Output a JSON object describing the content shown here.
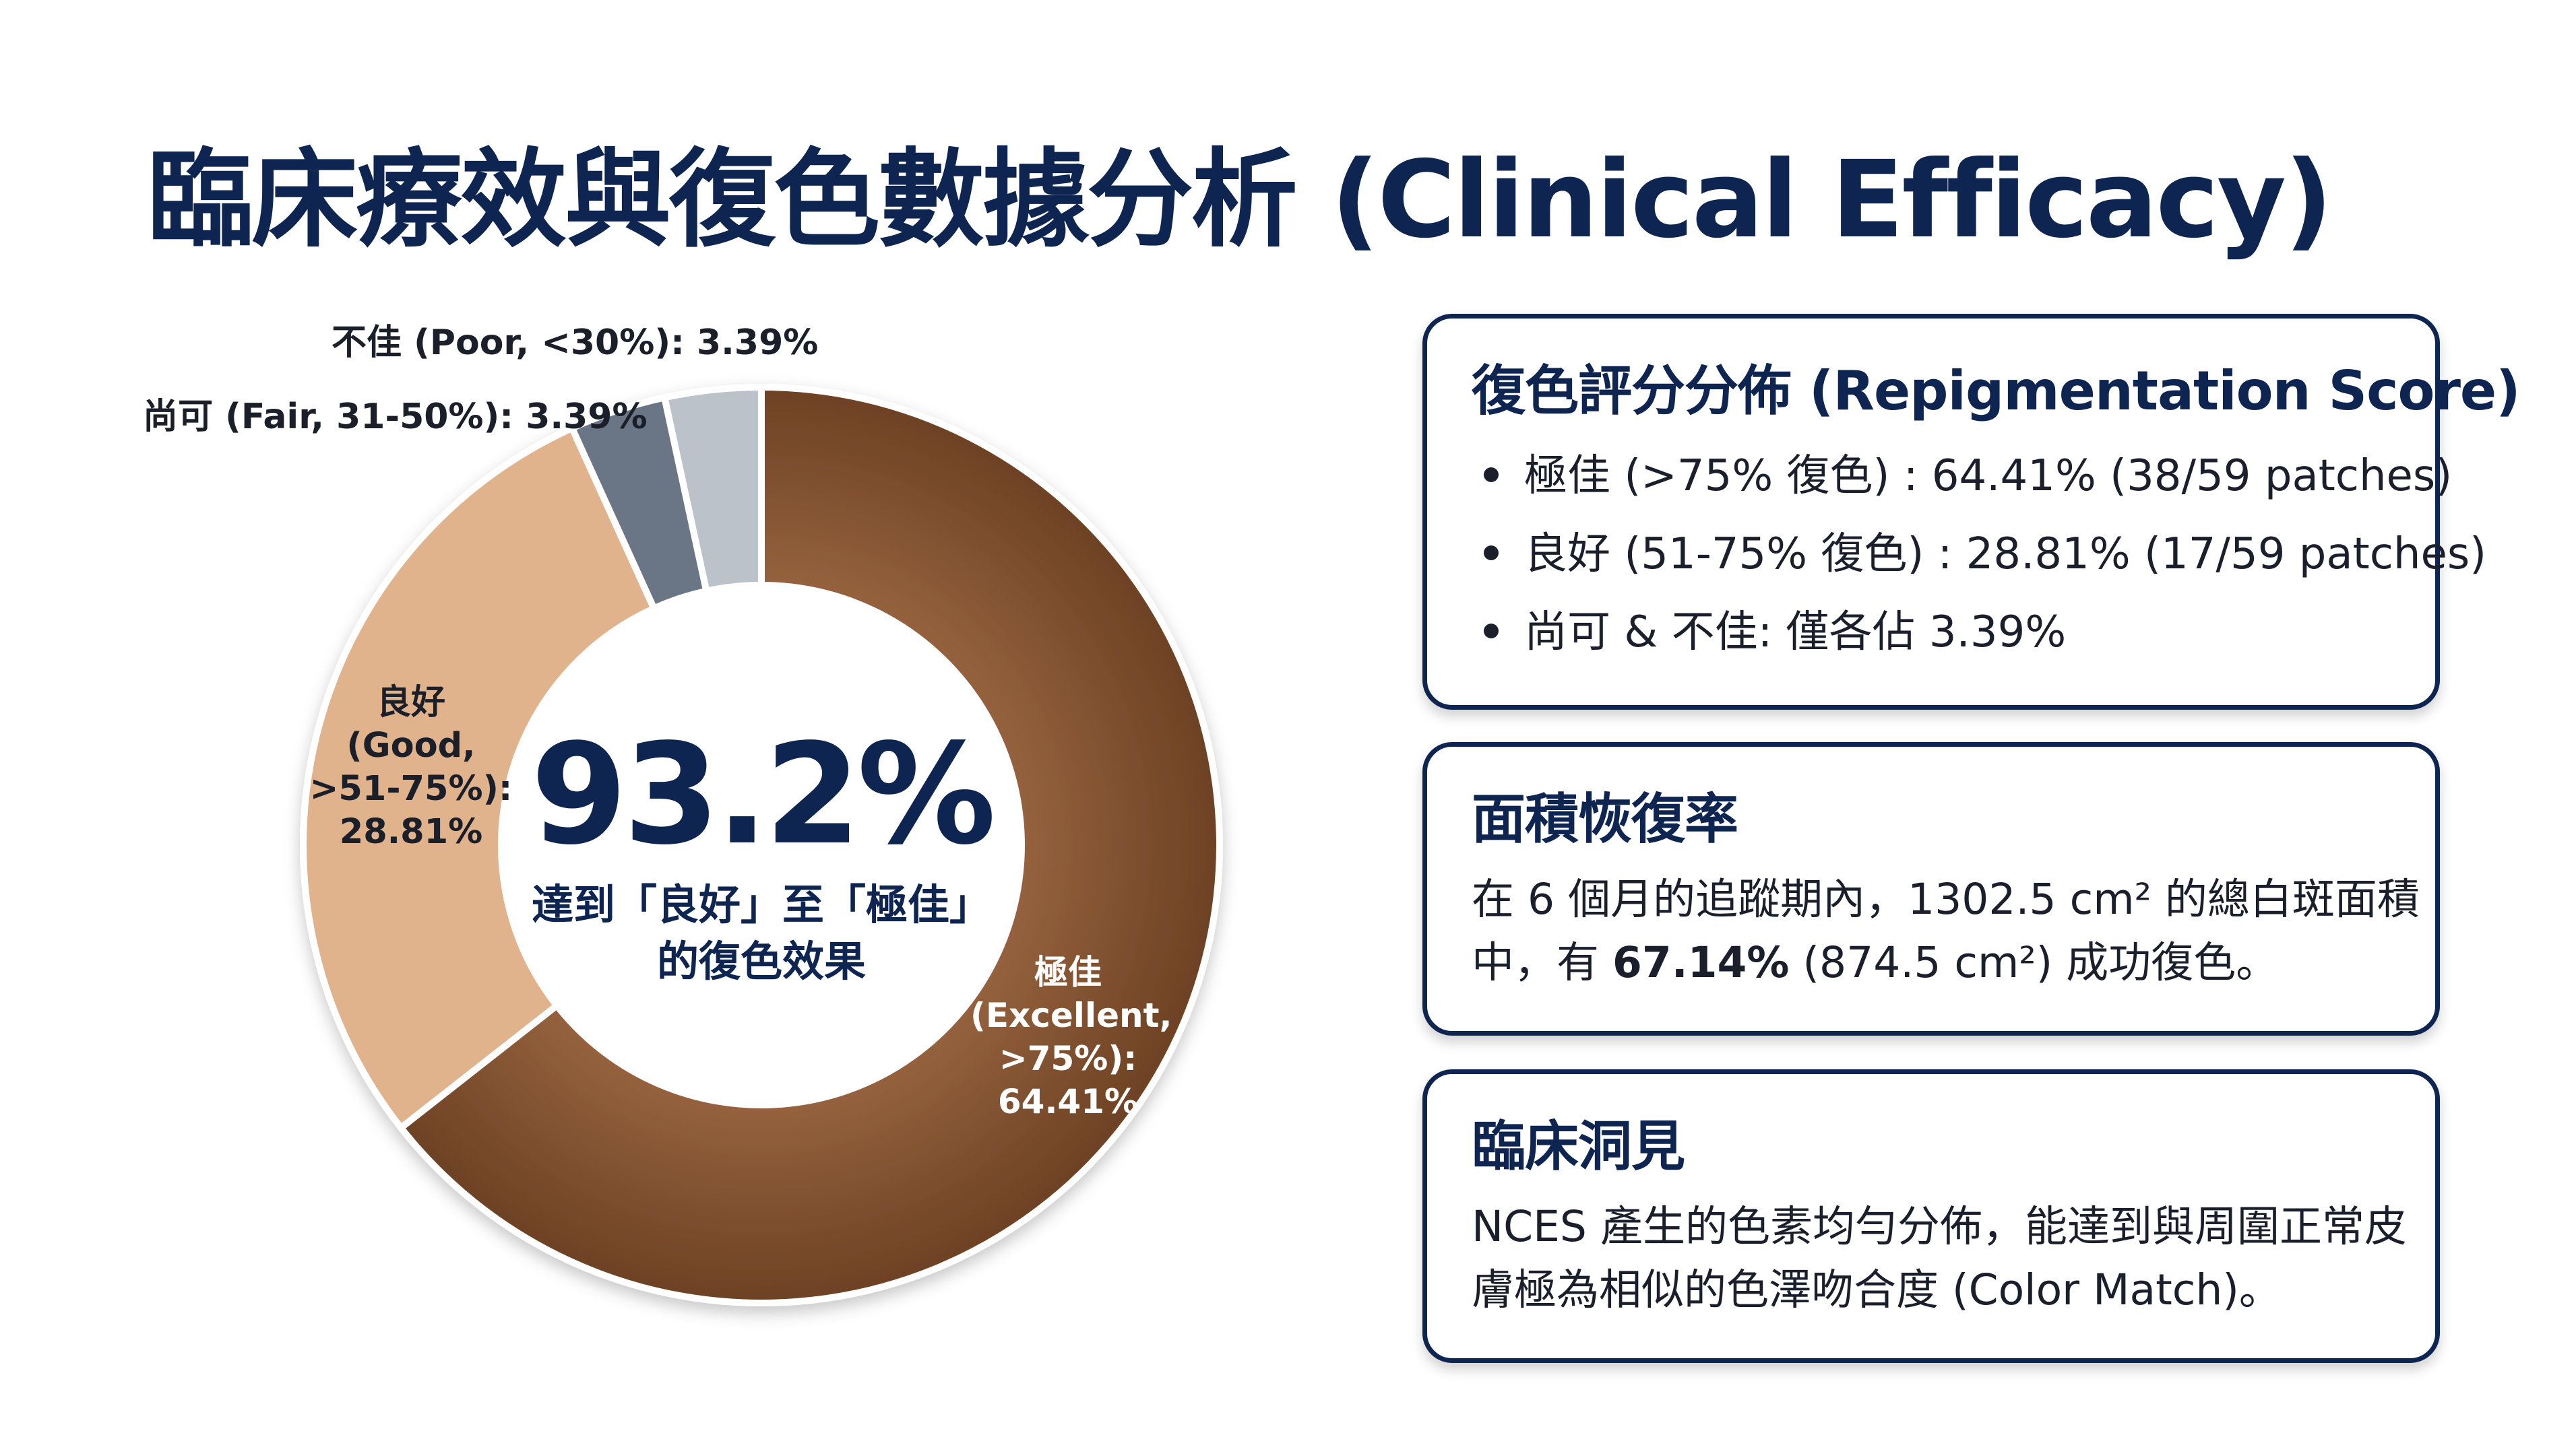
{
  "title": "臨床療效與復色數據分析 (Clinical Efficacy)",
  "chart_data": {
    "type": "pie",
    "slices": [
      {
        "label_lines": [
          "極佳",
          "(Excellent,",
          ">75%):",
          "64.41%"
        ],
        "value": 64.41,
        "color": "#7f4f2c"
      },
      {
        "label_lines": [
          "良好",
          "(Good,",
          ">51-75%):",
          "28.81%"
        ],
        "value": 28.81,
        "color": "#e0b38c"
      },
      {
        "label": "尚可 (Fair, 31-50%): 3.39%",
        "value": 3.39,
        "color": "#6b7686"
      },
      {
        "label": "不佳 (Poor, <30%): 3.39%",
        "value": 3.39,
        "color": "#bcc2ca"
      }
    ],
    "center_value": "93.2%",
    "center_text": [
      "達到「良好」至「極佳」",
      "的復色效果"
    ]
  },
  "cards": {
    "score": {
      "title": "復色評分分佈 (Repigmentation Score)",
      "items": [
        "極佳 (>75% 復色) : 64.41% (38/59 patches)",
        "良好 (51-75% 復色) : 28.81% (17/59 patches)",
        "尚可 & 不佳: 僅各佔 3.39%"
      ]
    },
    "area": {
      "title": "面積恢復率",
      "text_before": "在 6 個月的追蹤期內，1302.5 cm² 的總白斑面積中，有 ",
      "highlight": "67.14%",
      "text_after": " (874.5 cm²) 成功復色。"
    },
    "insight": {
      "title": "臨床洞見",
      "text": "NCES 產生的色素均勻分佈，能達到與周圍正常皮膚極為相似的色澤吻合度 (Color Match)。"
    }
  }
}
